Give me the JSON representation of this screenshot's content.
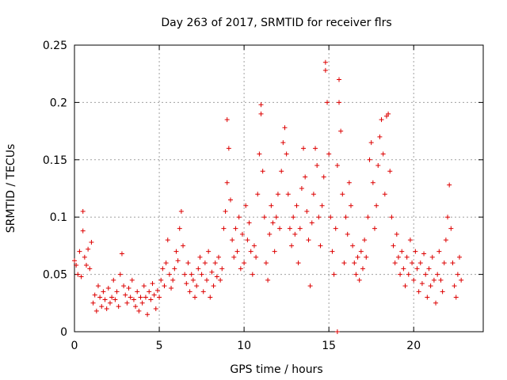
{
  "chart_data": {
    "type": "scatter",
    "title": "Day 263 of 2017, SRMTID for receiver flrs",
    "xlabel": "GPS time / hours",
    "ylabel": "SRMTID / TECUs",
    "xlim": [
      0,
      24.1
    ],
    "ylim": [
      0,
      0.25
    ],
    "x_ticks": [
      0,
      5,
      10,
      15,
      20
    ],
    "x_tick_labels": [
      "0",
      "5",
      "10",
      "15",
      "20"
    ],
    "y_ticks": [
      0,
      0.05,
      0.1,
      0.15,
      0.2,
      0.25
    ],
    "y_tick_labels": [
      "0",
      "0.05",
      "0.1",
      "0.15",
      "0.2",
      "0.25"
    ],
    "grid": true,
    "marker": "+",
    "color": "#dd0000",
    "series": [
      {
        "points": [
          [
            0.0,
            0.062
          ],
          [
            0.1,
            0.058
          ],
          [
            0.2,
            0.05
          ],
          [
            0.3,
            0.07
          ],
          [
            0.4,
            0.048
          ],
          [
            0.5,
            0.088
          ],
          [
            0.5,
            0.105
          ],
          [
            0.6,
            0.065
          ],
          [
            0.7,
            0.058
          ],
          [
            0.8,
            0.072
          ],
          [
            0.9,
            0.055
          ],
          [
            1.0,
            0.078
          ],
          [
            1.1,
            0.025
          ],
          [
            1.2,
            0.032
          ],
          [
            1.3,
            0.018
          ],
          [
            1.4,
            0.04
          ],
          [
            1.5,
            0.03
          ],
          [
            1.6,
            0.022
          ],
          [
            1.7,
            0.035
          ],
          [
            1.8,
            0.028
          ],
          [
            1.9,
            0.02
          ],
          [
            2.0,
            0.038
          ],
          [
            2.1,
            0.025
          ],
          [
            2.2,
            0.03
          ],
          [
            2.3,
            0.045
          ],
          [
            2.4,
            0.028
          ],
          [
            2.5,
            0.035
          ],
          [
            2.6,
            0.022
          ],
          [
            2.7,
            0.05
          ],
          [
            2.8,
            0.068
          ],
          [
            2.9,
            0.04
          ],
          [
            3.0,
            0.032
          ],
          [
            3.1,
            0.025
          ],
          [
            3.2,
            0.038
          ],
          [
            3.3,
            0.03
          ],
          [
            3.4,
            0.045
          ],
          [
            3.5,
            0.028
          ],
          [
            3.6,
            0.022
          ],
          [
            3.7,
            0.035
          ],
          [
            3.8,
            0.018
          ],
          [
            3.9,
            0.03
          ],
          [
            4.0,
            0.025
          ],
          [
            4.1,
            0.04
          ],
          [
            4.2,
            0.03
          ],
          [
            4.3,
            0.015
          ],
          [
            4.4,
            0.035
          ],
          [
            4.5,
            0.028
          ],
          [
            4.6,
            0.042
          ],
          [
            4.7,
            0.032
          ],
          [
            4.8,
            0.02
          ],
          [
            4.9,
            0.036
          ],
          [
            5.0,
            0.03
          ],
          [
            5.1,
            0.045
          ],
          [
            5.2,
            0.055
          ],
          [
            5.3,
            0.04
          ],
          [
            5.4,
            0.06
          ],
          [
            5.5,
            0.08
          ],
          [
            5.6,
            0.05
          ],
          [
            5.7,
            0.038
          ],
          [
            5.8,
            0.045
          ],
          [
            5.9,
            0.055
          ],
          [
            6.0,
            0.07
          ],
          [
            6.1,
            0.062
          ],
          [
            6.2,
            0.09
          ],
          [
            6.3,
            0.105
          ],
          [
            6.4,
            0.075
          ],
          [
            6.5,
            0.05
          ],
          [
            6.6,
            0.042
          ],
          [
            6.7,
            0.06
          ],
          [
            6.8,
            0.035
          ],
          [
            6.9,
            0.05
          ],
          [
            7.0,
            0.045
          ],
          [
            7.1,
            0.03
          ],
          [
            7.2,
            0.04
          ],
          [
            7.3,
            0.055
          ],
          [
            7.4,
            0.065
          ],
          [
            7.5,
            0.05
          ],
          [
            7.6,
            0.035
          ],
          [
            7.7,
            0.06
          ],
          [
            7.8,
            0.045
          ],
          [
            7.9,
            0.07
          ],
          [
            8.0,
            0.03
          ],
          [
            8.1,
            0.052
          ],
          [
            8.2,
            0.04
          ],
          [
            8.3,
            0.06
          ],
          [
            8.4,
            0.048
          ],
          [
            8.5,
            0.065
          ],
          [
            8.6,
            0.045
          ],
          [
            8.7,
            0.055
          ],
          [
            8.8,
            0.09
          ],
          [
            8.9,
            0.105
          ],
          [
            9.0,
            0.13
          ],
          [
            9.0,
            0.185
          ],
          [
            9.1,
            0.16
          ],
          [
            9.2,
            0.115
          ],
          [
            9.3,
            0.08
          ],
          [
            9.4,
            0.065
          ],
          [
            9.5,
            0.09
          ],
          [
            9.6,
            0.07
          ],
          [
            9.7,
            0.1
          ],
          [
            9.8,
            0.055
          ],
          [
            9.9,
            0.085
          ],
          [
            10.0,
            0.06
          ],
          [
            10.1,
            0.11
          ],
          [
            10.2,
            0.08
          ],
          [
            10.3,
            0.095
          ],
          [
            10.4,
            0.07
          ],
          [
            10.5,
            0.05
          ],
          [
            10.6,
            0.075
          ],
          [
            10.7,
            0.065
          ],
          [
            10.8,
            0.12
          ],
          [
            10.9,
            0.155
          ],
          [
            11.0,
            0.198
          ],
          [
            11.0,
            0.19
          ],
          [
            11.1,
            0.14
          ],
          [
            11.2,
            0.1
          ],
          [
            11.3,
            0.06
          ],
          [
            11.4,
            0.045
          ],
          [
            11.5,
            0.085
          ],
          [
            11.6,
            0.11
          ],
          [
            11.7,
            0.095
          ],
          [
            11.8,
            0.07
          ],
          [
            11.9,
            0.1
          ],
          [
            12.0,
            0.12
          ],
          [
            12.1,
            0.09
          ],
          [
            12.2,
            0.14
          ],
          [
            12.3,
            0.165
          ],
          [
            12.4,
            0.178
          ],
          [
            12.5,
            0.155
          ],
          [
            12.6,
            0.12
          ],
          [
            12.7,
            0.09
          ],
          [
            12.8,
            0.075
          ],
          [
            12.9,
            0.1
          ],
          [
            13.0,
            0.085
          ],
          [
            13.1,
            0.11
          ],
          [
            13.2,
            0.06
          ],
          [
            13.3,
            0.09
          ],
          [
            13.4,
            0.125
          ],
          [
            13.5,
            0.16
          ],
          [
            13.6,
            0.135
          ],
          [
            13.7,
            0.105
          ],
          [
            13.8,
            0.08
          ],
          [
            13.9,
            0.04
          ],
          [
            14.0,
            0.095
          ],
          [
            14.1,
            0.12
          ],
          [
            14.2,
            0.16
          ],
          [
            14.3,
            0.145
          ],
          [
            14.4,
            0.1
          ],
          [
            14.5,
            0.075
          ],
          [
            14.6,
            0.11
          ],
          [
            14.7,
            0.135
          ],
          [
            14.8,
            0.235
          ],
          [
            14.8,
            0.228
          ],
          [
            14.9,
            0.2
          ],
          [
            15.0,
            0.155
          ],
          [
            15.1,
            0.1
          ],
          [
            15.2,
            0.07
          ],
          [
            15.3,
            0.05
          ],
          [
            15.4,
            0.09
          ],
          [
            15.5,
            0.145
          ],
          [
            15.6,
            0.22
          ],
          [
            15.6,
            0.2
          ],
          [
            15.7,
            0.175
          ],
          [
            15.8,
            0.12
          ],
          [
            15.9,
            0.06
          ],
          [
            16.0,
            0.1
          ],
          [
            16.1,
            0.085
          ],
          [
            16.2,
            0.13
          ],
          [
            16.3,
            0.11
          ],
          [
            16.4,
            0.075
          ],
          [
            16.5,
            0.06
          ],
          [
            16.6,
            0.05
          ],
          [
            16.7,
            0.065
          ],
          [
            16.8,
            0.045
          ],
          [
            16.9,
            0.07
          ],
          [
            17.0,
            0.055
          ],
          [
            17.1,
            0.08
          ],
          [
            17.2,
            0.065
          ],
          [
            17.3,
            0.1
          ],
          [
            17.4,
            0.15
          ],
          [
            17.5,
            0.165
          ],
          [
            17.6,
            0.13
          ],
          [
            17.7,
            0.09
          ],
          [
            17.8,
            0.11
          ],
          [
            17.9,
            0.145
          ],
          [
            18.0,
            0.17
          ],
          [
            18.1,
            0.185
          ],
          [
            18.2,
            0.155
          ],
          [
            18.3,
            0.12
          ],
          [
            18.4,
            0.188
          ],
          [
            18.5,
            0.19
          ],
          [
            18.6,
            0.14
          ],
          [
            18.7,
            0.1
          ],
          [
            18.8,
            0.075
          ],
          [
            18.9,
            0.06
          ],
          [
            19.0,
            0.085
          ],
          [
            19.1,
            0.065
          ],
          [
            19.2,
            0.05
          ],
          [
            19.3,
            0.07
          ],
          [
            19.4,
            0.055
          ],
          [
            19.5,
            0.04
          ],
          [
            19.6,
            0.065
          ],
          [
            19.7,
            0.05
          ],
          [
            19.8,
            0.08
          ],
          [
            19.9,
            0.06
          ],
          [
            20.0,
            0.045
          ],
          [
            20.1,
            0.07
          ],
          [
            20.2,
            0.055
          ],
          [
            20.3,
            0.035
          ],
          [
            20.4,
            0.06
          ],
          [
            20.5,
            0.042
          ],
          [
            20.6,
            0.068
          ],
          [
            20.7,
            0.05
          ],
          [
            20.8,
            0.03
          ],
          [
            20.9,
            0.055
          ],
          [
            21.0,
            0.04
          ],
          [
            21.1,
            0.065
          ],
          [
            21.2,
            0.045
          ],
          [
            21.3,
            0.025
          ],
          [
            21.4,
            0.05
          ],
          [
            21.5,
            0.07
          ],
          [
            21.6,
            0.045
          ],
          [
            21.7,
            0.035
          ],
          [
            21.8,
            0.06
          ],
          [
            21.9,
            0.08
          ],
          [
            22.0,
            0.1
          ],
          [
            22.1,
            0.128
          ],
          [
            22.2,
            0.09
          ],
          [
            22.3,
            0.06
          ],
          [
            22.4,
            0.04
          ],
          [
            22.5,
            0.03
          ],
          [
            22.6,
            0.05
          ],
          [
            22.7,
            0.065
          ],
          [
            22.8,
            0.045
          ],
          [
            15.5,
            0.0
          ]
        ]
      }
    ]
  }
}
